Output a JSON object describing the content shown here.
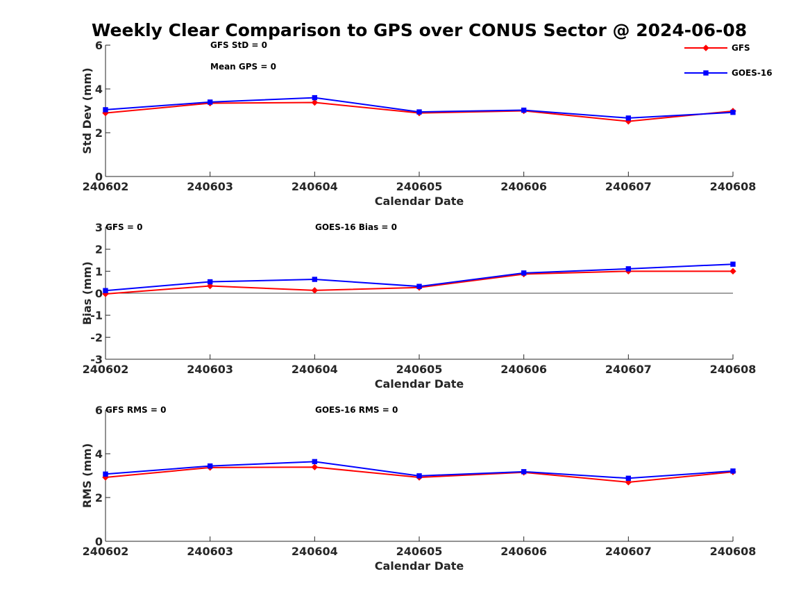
{
  "chart_data": {
    "title": "Weekly Clear Comparison to GPS over CONUS Sector @ 2024-06-08",
    "legend": {
      "placement": "top-right",
      "entries": [
        {
          "name": "GFS",
          "color": "#ff0000",
          "marker": "diamond"
        },
        {
          "name": "GOES-16",
          "color": "#0000ff",
          "marker": "square"
        }
      ]
    },
    "panels": [
      {
        "type": "line",
        "xlabel": "Calendar Date",
        "ylabel": "Std Dev (mm)",
        "ylim": [
          0,
          6
        ],
        "yticks": [
          "0",
          "2",
          "4",
          "6"
        ],
        "x": [
          "240602",
          "240603",
          "240604",
          "240605",
          "240606",
          "240607",
          "240608"
        ],
        "series": [
          {
            "name": "GFS",
            "color": "#ff0000",
            "marker": "diamond",
            "values": [
              2.9,
              3.35,
              3.38,
              2.9,
              3.0,
              2.52,
              2.99
            ]
          },
          {
            "name": "GOES-16",
            "color": "#0000ff",
            "marker": "square",
            "values": [
              3.05,
              3.4,
              3.6,
              2.95,
              3.03,
              2.67,
              2.93
            ]
          }
        ],
        "zero_line": false,
        "annotations": [
          "GFS StD = 0",
          "Mean GPS = 0"
        ]
      },
      {
        "type": "line",
        "xlabel": "Calendar Date",
        "ylabel": "Bias (mm)",
        "ylim": [
          -3,
          3
        ],
        "yticks": [
          "-3",
          "-2",
          "-1",
          "0",
          "1",
          "2",
          "3"
        ],
        "x": [
          "240602",
          "240603",
          "240604",
          "240605",
          "240606",
          "240607",
          "240608"
        ],
        "series": [
          {
            "name": "GFS",
            "color": "#ff0000",
            "marker": "diamond",
            "values": [
              -0.03,
              0.33,
              0.13,
              0.26,
              0.87,
              1.0,
              1.0
            ]
          },
          {
            "name": "GOES-16",
            "color": "#0000ff",
            "marker": "square",
            "values": [
              0.12,
              0.52,
              0.63,
              0.31,
              0.92,
              1.11,
              1.32
            ]
          }
        ],
        "zero_line": true,
        "annotations": [
          "GFS = 0",
          "GOES-16 Bias  = 0"
        ]
      },
      {
        "type": "line",
        "xlabel": "Calendar Date",
        "ylabel": "RMS (mm)",
        "ylim": [
          0,
          6
        ],
        "yticks": [
          "0",
          "2",
          "4",
          "6"
        ],
        "x": [
          "240602",
          "240603",
          "240604",
          "240605",
          "240606",
          "240607",
          "240608"
        ],
        "series": [
          {
            "name": "GFS",
            "color": "#ff0000",
            "marker": "diamond",
            "values": [
              2.92,
              3.37,
              3.39,
              2.92,
              3.15,
              2.7,
              3.17
            ]
          },
          {
            "name": "GOES-16",
            "color": "#0000ff",
            "marker": "square",
            "values": [
              3.07,
              3.44,
              3.64,
              2.99,
              3.18,
              2.88,
              3.21
            ]
          }
        ],
        "zero_line": false,
        "annotations": [
          "GFS RMS = 0",
          "GOES-16 RMS = 0"
        ]
      }
    ]
  }
}
